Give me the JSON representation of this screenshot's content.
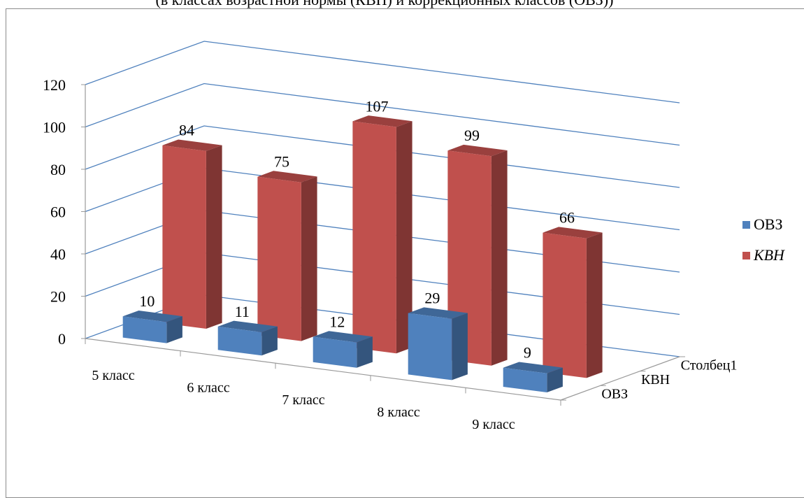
{
  "chart_data": {
    "type": "bar",
    "title": "(в классах возрастной нормы (КВН) и коррекционных классов (ОВЗ))",
    "categories": [
      "5 класс",
      "6 класс",
      "7 класс",
      "8 класс",
      "9 класс"
    ],
    "depth_categories": [
      "ОВЗ",
      "КВН",
      "Столбец1"
    ],
    "series": [
      {
        "name": "ОВЗ",
        "values": [
          10,
          11,
          12,
          29,
          9
        ],
        "color": "#4f81bd"
      },
      {
        "name": "КВН",
        "values": [
          84,
          75,
          107,
          99,
          66
        ],
        "color": "#c0504d"
      },
      {
        "name": "Столбец1",
        "values": [
          null,
          null,
          null,
          null,
          null
        ]
      }
    ],
    "ylim": [
      0,
      120
    ],
    "yticks": [
      0,
      20,
      40,
      60,
      80,
      100,
      120
    ],
    "grid": true,
    "gridline_color": "#4f81bd",
    "legend": {
      "position": "right",
      "entries": [
        {
          "label": "ОВЗ",
          "color": "#4f81bd",
          "italic": false
        },
        {
          "label": "КВН",
          "color": "#c0504d",
          "italic": true
        }
      ]
    }
  }
}
